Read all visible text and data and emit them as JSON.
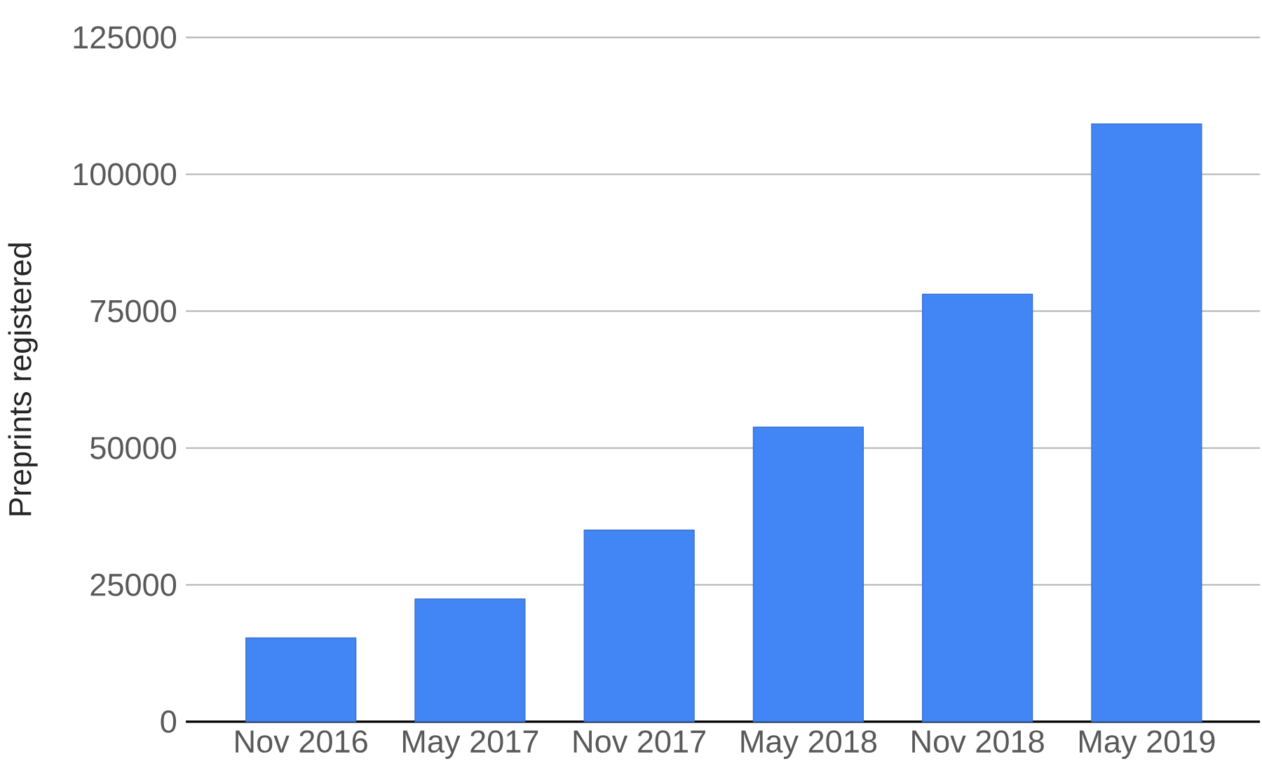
{
  "chart_data": {
    "type": "bar",
    "ylabel": "Preprints registered",
    "categories": [
      "Nov 2016",
      "May 2017",
      "Nov 2017",
      "May 2018",
      "Nov 2018",
      "May 2019"
    ],
    "values": [
      15300,
      22400,
      35000,
      53800,
      78100,
      109200
    ],
    "color": "#4285f4",
    "ylim": [
      0,
      125000
    ],
    "yticks": [
      0,
      25000,
      50000,
      75000,
      100000,
      125000
    ],
    "grid": "y"
  }
}
